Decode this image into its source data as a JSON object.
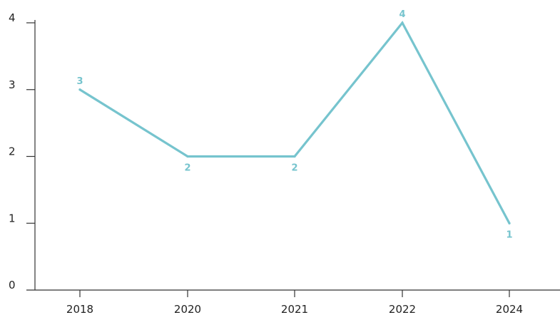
{
  "chart_data": {
    "type": "line",
    "categories": [
      "2018",
      "2020",
      "2021",
      "2022",
      "2024"
    ],
    "series": [
      {
        "values": [
          3,
          2,
          2,
          4,
          1
        ]
      }
    ],
    "y_ticks": [
      "0",
      "1",
      "2",
      "3",
      "4"
    ],
    "ylim": [
      0,
      4
    ],
    "grid": false,
    "legend": "none",
    "data_labels": true,
    "line_color": "#76c4ce",
    "axis_color": "#333333"
  }
}
